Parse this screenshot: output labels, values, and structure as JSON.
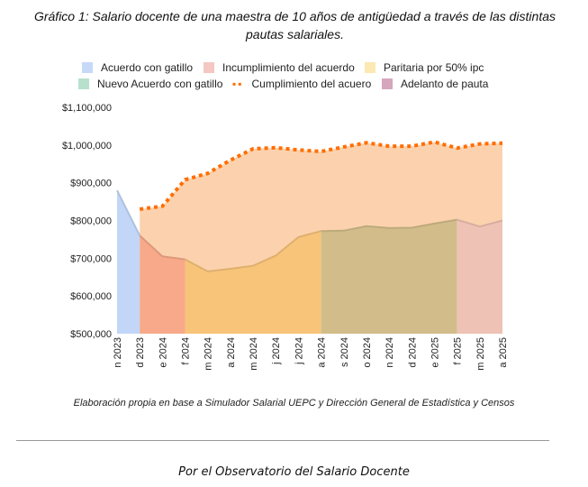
{
  "chart_data": {
    "type": "area",
    "title": "Gráfico 1: Salario docente de una maestra de 10 años de antigüedad a través de las distintas pautas salariales.",
    "categories": [
      "n 2023",
      "d 2023",
      "e 2024",
      "f 2024",
      "m 2024",
      "a 2024",
      "m 2024",
      "j 2024",
      "j 2024",
      "a 2024",
      "s 2024",
      "o 2024",
      "n 2024",
      "d 2024",
      "e 2025",
      "f 2025",
      "m 2025",
      "a 2025"
    ],
    "salary": [
      880000,
      760000,
      705000,
      697000,
      665000,
      672000,
      680000,
      707000,
      756000,
      772000,
      773000,
      785000,
      780000,
      781000,
      792000,
      802000,
      784000,
      800000
    ],
    "segments": [
      {
        "name": "Acuerdo con gatillo",
        "from": 0,
        "to": 1,
        "color": "#c2d6f7",
        "legend_color": "#c6d9f7"
      },
      {
        "name": "Incumplimiento del acuerdo",
        "from": 1,
        "to": 3,
        "color": "#f7a98a",
        "legend_color": "#f4c7c3"
      },
      {
        "name": "Paritaria por  50% ipc",
        "from": 3,
        "to": 9,
        "color": "#f7c47a",
        "legend_color": "#fce8b2"
      },
      {
        "name": "Nuevo Acuerdo con gatillo",
        "from": 9,
        "to": 15,
        "color": "#d2bd8a",
        "legend_color": "#b7e1cd"
      },
      {
        "name": "Adelanto de pauta",
        "from": 15,
        "to": 17,
        "color": "#eec2b4",
        "legend_color": "#d5a6bd"
      }
    ],
    "cumplimiento": {
      "name": "Cumplimiento del acuero",
      "color": "#ff6d00",
      "fill": "#fcd2ae",
      "start": 1,
      "values": [
        null,
        830000,
        838000,
        908000,
        925000,
        960000,
        990000,
        993000,
        987000,
        983000,
        995000,
        1006000,
        997000,
        997000,
        1008000,
        992000,
        1003000,
        1005000
      ]
    },
    "y_ticks": [
      "$500,000",
      "$600,000",
      "$700,000",
      "$800,000",
      "$900,000",
      "$1,000,000",
      "$1,100,000"
    ],
    "ylim": [
      500000,
      1100000
    ],
    "legend_position": "top"
  },
  "source": "Elaboración propia en base a Simulador Salarial UEPC y Dirección General de Estadística y Censos",
  "footer": "Por el Observatorio del Salario Docente"
}
